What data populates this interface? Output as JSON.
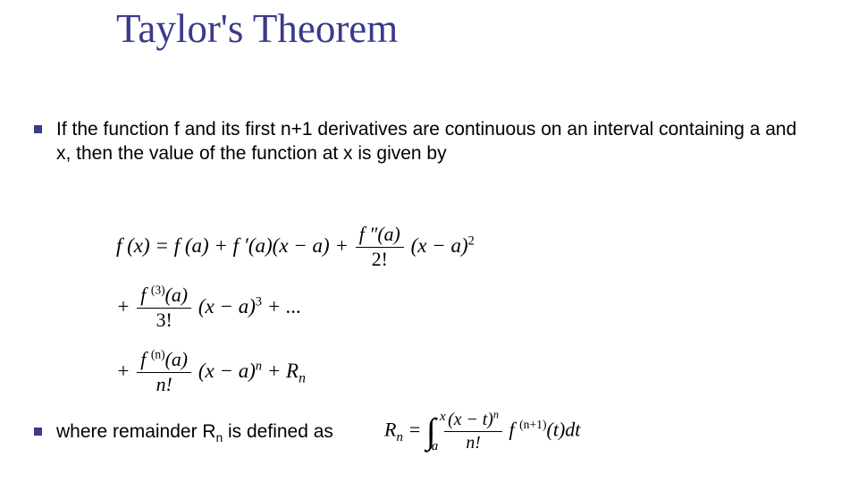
{
  "colors": {
    "title": "#3a3a8c",
    "bullet": "#3a3a8c",
    "text": "#000000",
    "background": "#ffffff"
  },
  "typography": {
    "title_font": "Comic Sans MS",
    "title_size_pt": 34,
    "body_font": "Verdana",
    "body_size_pt": 16,
    "formula_font": "Times New Roman",
    "formula_style": "italic",
    "formula_size_pt": 17
  },
  "title": "Taylor's Theorem",
  "bullets": [
    "If the function f and its first n+1 derivatives are continuous on an interval containing a and x, then the value of the function at x is given by",
    "where remainder R"
  ],
  "bullet2_sub": "n",
  "bullet2_tail": " is defined as",
  "formula": {
    "line1": {
      "lead": "f (x) = f (a) + f ′(a)(x − a) + ",
      "frac_num": "f ″(a)",
      "frac_den": "2!",
      "tail_base": "(x − a)",
      "tail_exp": "2"
    },
    "line2": {
      "plus": "+ ",
      "frac_num_f": "f ",
      "frac_num_exp": "(3)",
      "frac_num_tail": "(a)",
      "frac_den": "3!",
      "tail_base": "(x − a)",
      "tail_exp": "3",
      "dots": " + ..."
    },
    "line3": {
      "plus": "+ ",
      "frac_num_f": "f ",
      "frac_num_exp": "(n)",
      "frac_num_tail": "(a)",
      "frac_den": "n!",
      "tail_base": "(x − a)",
      "tail_exp": "n",
      "rem": " + R",
      "rem_sub": "n"
    },
    "remainder": {
      "lead": "R",
      "lead_sub": "n",
      "eq": " = ",
      "int_lo": "a",
      "int_hi": "x",
      "frac_num_base": "(x − t)",
      "frac_num_exp": "n",
      "frac_den": "n!",
      "f": " f ",
      "f_exp": "(n+1)",
      "tail": "(t)dt"
    }
  }
}
